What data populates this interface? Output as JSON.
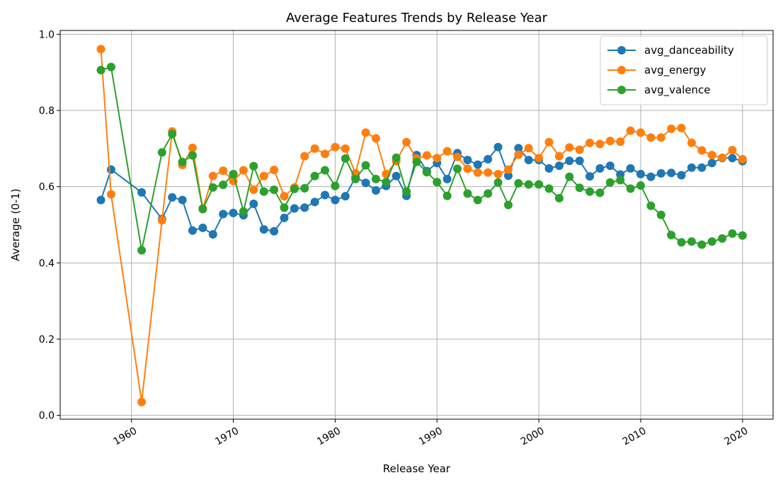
{
  "chart_data": {
    "type": "line",
    "title": "Average Features Trends by Release Year",
    "xlabel": "Release Year",
    "ylabel": "Average (0-1)",
    "xlim": [
      1953,
      2023
    ],
    "ylim": [
      -0.01,
      1.01
    ],
    "xticks": [
      1960,
      1970,
      1980,
      1990,
      2000,
      2010,
      2020
    ],
    "xtick_labels": [
      "1960",
      "1970",
      "1980",
      "1990",
      "2000",
      "2010",
      "2020"
    ],
    "yticks": [
      0.0,
      0.2,
      0.4,
      0.6,
      0.8,
      1.0
    ],
    "ytick_labels": [
      "0.0",
      "0.2",
      "0.4",
      "0.6",
      "0.8",
      "1.0"
    ],
    "grid": true,
    "legend": "top-right",
    "x": [
      1957,
      1958,
      1961,
      1963,
      1964,
      1965,
      1966,
      1967,
      1968,
      1969,
      1970,
      1971,
      1972,
      1973,
      1974,
      1975,
      1976,
      1977,
      1978,
      1979,
      1980,
      1981,
      1982,
      1983,
      1984,
      1985,
      1986,
      1987,
      1988,
      1989,
      1990,
      1991,
      1992,
      1993,
      1994,
      1995,
      1996,
      1997,
      1998,
      1999,
      2000,
      2001,
      2002,
      2003,
      2004,
      2005,
      2006,
      2007,
      2008,
      2009,
      2010,
      2011,
      2012,
      2013,
      2014,
      2015,
      2016,
      2017,
      2018,
      2019,
      2020
    ],
    "series": [
      {
        "name": "avg_danceability",
        "color": "#1f77b4",
        "values": [
          0.565,
          0.645,
          0.585,
          0.515,
          0.572,
          0.565,
          0.485,
          0.492,
          0.475,
          0.528,
          0.531,
          0.525,
          0.555,
          0.488,
          0.483,
          0.518,
          0.543,
          0.545,
          0.56,
          0.578,
          0.565,
          0.575,
          0.625,
          0.61,
          0.59,
          0.602,
          0.628,
          0.576,
          0.683,
          0.641,
          0.662,
          0.62,
          0.688,
          0.67,
          0.658,
          0.672,
          0.704,
          0.629,
          0.701,
          0.67,
          0.67,
          0.648,
          0.655,
          0.668,
          0.668,
          0.627,
          0.648,
          0.655,
          0.632,
          0.648,
          0.633,
          0.626,
          0.635,
          0.636,
          0.63,
          0.65,
          0.65,
          0.662,
          0.675,
          0.675,
          0.667
        ]
      },
      {
        "name": "avg_energy",
        "color": "#ff7f0e",
        "values": [
          0.961,
          0.58,
          0.035,
          0.512,
          0.745,
          0.657,
          0.702,
          0.543,
          0.628,
          0.642,
          0.615,
          0.643,
          0.592,
          0.628,
          0.644,
          0.575,
          0.598,
          0.68,
          0.7,
          0.686,
          0.704,
          0.7,
          0.635,
          0.742,
          0.727,
          0.633,
          0.667,
          0.717,
          0.674,
          0.682,
          0.675,
          0.693,
          0.678,
          0.647,
          0.637,
          0.637,
          0.633,
          0.645,
          0.684,
          0.701,
          0.675,
          0.717,
          0.68,
          0.703,
          0.697,
          0.715,
          0.712,
          0.72,
          0.718,
          0.747,
          0.742,
          0.729,
          0.729,
          0.752,
          0.754,
          0.715,
          0.695,
          0.683,
          0.676,
          0.696,
          0.672
        ]
      },
      {
        "name": "avg_valence",
        "color": "#2ca02c",
        "values": [
          0.906,
          0.914,
          0.433,
          0.69,
          0.738,
          0.665,
          0.682,
          0.541,
          0.598,
          0.605,
          0.633,
          0.535,
          0.654,
          0.587,
          0.592,
          0.545,
          0.594,
          0.596,
          0.628,
          0.643,
          0.602,
          0.674,
          0.62,
          0.656,
          0.62,
          0.612,
          0.676,
          0.587,
          0.665,
          0.638,
          0.612,
          0.576,
          0.647,
          0.582,
          0.565,
          0.582,
          0.611,
          0.552,
          0.609,
          0.606,
          0.606,
          0.595,
          0.57,
          0.626,
          0.597,
          0.587,
          0.584,
          0.611,
          0.617,
          0.595,
          0.603,
          0.55,
          0.526,
          0.473,
          0.454,
          0.456,
          0.448,
          0.456,
          0.464,
          0.477,
          0.472
        ]
      }
    ]
  }
}
